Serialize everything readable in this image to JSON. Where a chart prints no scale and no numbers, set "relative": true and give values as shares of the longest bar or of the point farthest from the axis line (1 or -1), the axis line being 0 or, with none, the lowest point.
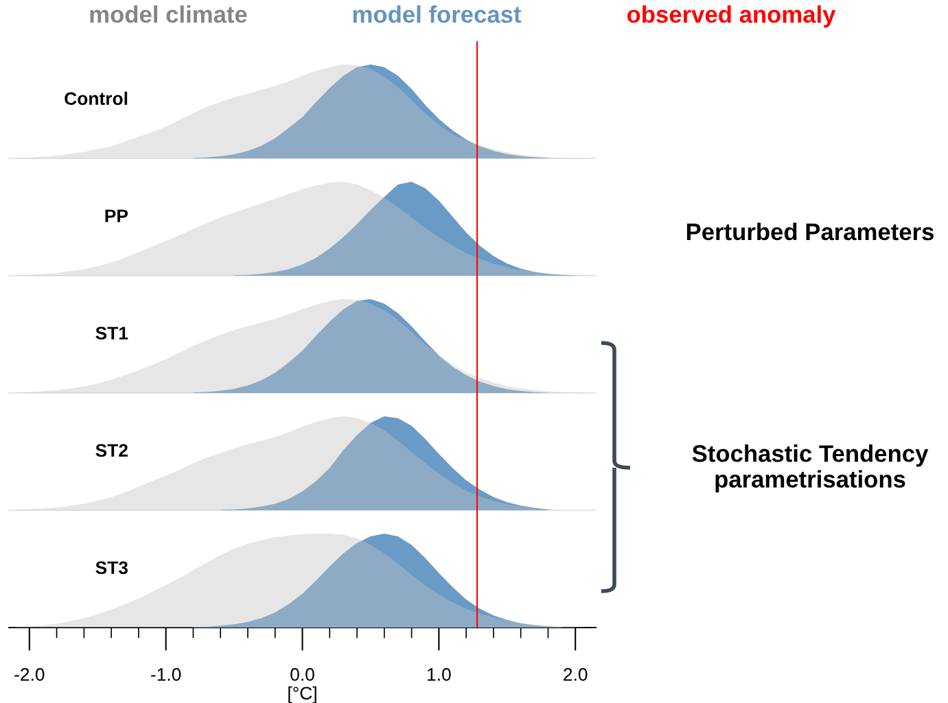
{
  "chart_data": [
    {
      "type": "area",
      "title": "Control",
      "relative": true,
      "xlim": [
        -2.15,
        2.15
      ],
      "tick_labels": false,
      "x": [
        -2.1,
        -2.0,
        -1.9,
        -1.8,
        -1.7,
        -1.6,
        -1.5,
        -1.4,
        -1.3,
        -1.2,
        -1.1,
        -1.0,
        -0.9,
        -0.8,
        -0.7,
        -0.6,
        -0.5,
        -0.4,
        -0.3,
        -0.2,
        -0.1,
        0.0,
        0.1,
        0.2,
        0.3,
        0.4,
        0.5,
        0.6,
        0.7,
        0.8,
        0.9,
        1.0,
        1.1,
        1.2,
        1.3,
        1.4,
        1.5,
        1.6,
        1.7,
        1.8,
        1.9,
        2.0,
        2.1
      ],
      "series": [
        {
          "name": "model climate",
          "color": "#e6e6e6",
          "values": [
            0.005,
            0.01,
            0.02,
            0.03,
            0.05,
            0.07,
            0.1,
            0.13,
            0.18,
            0.23,
            0.28,
            0.34,
            0.41,
            0.48,
            0.55,
            0.6,
            0.65,
            0.69,
            0.73,
            0.77,
            0.82,
            0.88,
            0.93,
            0.97,
            1.0,
            0.99,
            0.95,
            0.87,
            0.76,
            0.62,
            0.48,
            0.36,
            0.26,
            0.19,
            0.14,
            0.1,
            0.065,
            0.04,
            0.025,
            0.015,
            0.008,
            0.004,
            0.002
          ]
        },
        {
          "name": "model forecast",
          "color": "#6a9bc6",
          "values": [
            null,
            null,
            null,
            null,
            null,
            null,
            null,
            null,
            null,
            null,
            null,
            null,
            null,
            0.005,
            0.011,
            0.023,
            0.044,
            0.08,
            0.135,
            0.216,
            0.325,
            0.44,
            0.6,
            0.75,
            0.88,
            0.97,
            1.0,
            0.97,
            0.88,
            0.74,
            0.57,
            0.42,
            0.3,
            0.2,
            0.13,
            0.08,
            0.045,
            0.025,
            0.012,
            0.005,
            null,
            null,
            null
          ]
        }
      ],
      "ref_lines": [
        {
          "axis": "x",
          "value": 1.28,
          "label": "observed anomaly",
          "color": "#ff0000"
        }
      ]
    },
    {
      "type": "area",
      "title": "PP",
      "relative": true,
      "xlim": [
        -2.15,
        2.15
      ],
      "tick_labels": false,
      "x": [
        -2.1,
        -2.0,
        -1.9,
        -1.8,
        -1.7,
        -1.6,
        -1.5,
        -1.4,
        -1.3,
        -1.2,
        -1.1,
        -1.0,
        -0.9,
        -0.8,
        -0.7,
        -0.6,
        -0.5,
        -0.4,
        -0.3,
        -0.2,
        -0.1,
        0.0,
        0.1,
        0.2,
        0.3,
        0.4,
        0.5,
        0.6,
        0.7,
        0.8,
        0.9,
        1.0,
        1.1,
        1.2,
        1.3,
        1.4,
        1.5,
        1.6,
        1.7,
        1.8,
        1.9,
        2.0,
        2.1
      ],
      "series": [
        {
          "color": "#e6e6e6",
          "values": [
            0.005,
            0.01,
            0.02,
            0.03,
            0.05,
            0.07,
            0.1,
            0.14,
            0.19,
            0.25,
            0.31,
            0.37,
            0.43,
            0.5,
            0.56,
            0.62,
            0.67,
            0.72,
            0.77,
            0.82,
            0.87,
            0.92,
            0.96,
            0.99,
            1.0,
            0.97,
            0.91,
            0.83,
            0.73,
            0.62,
            0.51,
            0.41,
            0.32,
            0.24,
            0.18,
            0.13,
            0.09,
            0.06,
            0.04,
            0.025,
            0.015,
            0.008,
            0.004
          ]
        },
        {
          "color": "#6a9bc6",
          "values": [
            null,
            null,
            null,
            null,
            null,
            null,
            null,
            null,
            null,
            null,
            null,
            null,
            null,
            null,
            null,
            null,
            0.005,
            0.01,
            0.02,
            0.04,
            0.07,
            0.12,
            0.19,
            0.29,
            0.41,
            0.55,
            0.7,
            0.84,
            0.97,
            1.0,
            0.93,
            0.8,
            0.63,
            0.46,
            0.32,
            0.21,
            0.13,
            0.075,
            0.04,
            0.02,
            0.01,
            0.004,
            null
          ]
        }
      ],
      "ref_lines": [
        {
          "axis": "x",
          "value": 1.28,
          "color": "#ff0000"
        }
      ],
      "annotations": [
        "Perturbed Parameters"
      ]
    },
    {
      "type": "area",
      "title": "ST1",
      "relative": true,
      "xlim": [
        -2.15,
        2.15
      ],
      "tick_labels": false,
      "x": [
        -2.1,
        -2.0,
        -1.9,
        -1.8,
        -1.7,
        -1.6,
        -1.5,
        -1.4,
        -1.3,
        -1.2,
        -1.1,
        -1.0,
        -0.9,
        -0.8,
        -0.7,
        -0.6,
        -0.5,
        -0.4,
        -0.3,
        -0.2,
        -0.1,
        0.0,
        0.1,
        0.2,
        0.3,
        0.4,
        0.5,
        0.6,
        0.7,
        0.8,
        0.9,
        1.0,
        1.1,
        1.2,
        1.3,
        1.4,
        1.5,
        1.6,
        1.7,
        1.8,
        1.9,
        2.0,
        2.1
      ],
      "series": [
        {
          "color": "#e6e6e6",
          "values": [
            0.005,
            0.01,
            0.02,
            0.03,
            0.05,
            0.07,
            0.1,
            0.14,
            0.19,
            0.24,
            0.3,
            0.36,
            0.43,
            0.5,
            0.56,
            0.62,
            0.67,
            0.71,
            0.75,
            0.79,
            0.84,
            0.89,
            0.94,
            0.98,
            1.0,
            0.99,
            0.95,
            0.88,
            0.78,
            0.65,
            0.52,
            0.4,
            0.3,
            0.22,
            0.16,
            0.11,
            0.075,
            0.05,
            0.03,
            0.018,
            0.01,
            0.005,
            0.002
          ]
        },
        {
          "color": "#6a9bc6",
          "values": [
            null,
            null,
            null,
            null,
            null,
            null,
            null,
            null,
            null,
            null,
            null,
            null,
            null,
            0.005,
            0.011,
            0.023,
            0.044,
            0.08,
            0.135,
            0.216,
            0.325,
            0.45,
            0.61,
            0.76,
            0.89,
            0.98,
            1.0,
            0.95,
            0.85,
            0.71,
            0.55,
            0.4,
            0.28,
            0.19,
            0.12,
            0.075,
            0.04,
            0.022,
            0.01,
            0.004,
            null,
            null,
            null
          ]
        }
      ],
      "ref_lines": [
        {
          "axis": "x",
          "value": 1.28,
          "color": "#ff0000"
        }
      ]
    },
    {
      "type": "area",
      "title": "ST2",
      "relative": true,
      "xlim": [
        -2.15,
        2.15
      ],
      "tick_labels": false,
      "x": [
        -2.1,
        -2.0,
        -1.9,
        -1.8,
        -1.7,
        -1.6,
        -1.5,
        -1.4,
        -1.3,
        -1.2,
        -1.1,
        -1.0,
        -0.9,
        -0.8,
        -0.7,
        -0.6,
        -0.5,
        -0.4,
        -0.3,
        -0.2,
        -0.1,
        0.0,
        0.1,
        0.2,
        0.3,
        0.4,
        0.5,
        0.6,
        0.7,
        0.8,
        0.9,
        1.0,
        1.1,
        1.2,
        1.3,
        1.4,
        1.5,
        1.6,
        1.7,
        1.8,
        1.9
      ],
      "series": [
        {
          "color": "#e6e6e6",
          "values": [
            0.005,
            0.01,
            0.02,
            0.03,
            0.05,
            0.07,
            0.1,
            0.14,
            0.19,
            0.25,
            0.31,
            0.37,
            0.43,
            0.5,
            0.56,
            0.61,
            0.66,
            0.7,
            0.74,
            0.78,
            0.83,
            0.89,
            0.94,
            0.98,
            1.0,
            0.98,
            0.93,
            0.85,
            0.74,
            0.62,
            0.5,
            0.39,
            0.29,
            0.21,
            0.15,
            0.1,
            0.065,
            0.04,
            0.02,
            0.01,
            0
          ]
        },
        {
          "color": "#6a9bc6",
          "values": [
            null,
            null,
            null,
            null,
            null,
            null,
            null,
            null,
            null,
            null,
            null,
            null,
            null,
            null,
            null,
            0.005,
            0.01,
            0.02,
            0.04,
            0.07,
            0.12,
            0.2,
            0.31,
            0.45,
            0.64,
            0.8,
            0.93,
            1.0,
            0.98,
            0.9,
            0.76,
            0.6,
            0.45,
            0.32,
            0.22,
            0.14,
            0.085,
            0.05,
            0.025,
            0.01,
            null
          ]
        }
      ],
      "ref_lines": [
        {
          "axis": "x",
          "value": 1.28,
          "color": "#ff0000"
        }
      ],
      "annotations": [
        "Stochastic Tendency\nparametrisations"
      ]
    },
    {
      "type": "area",
      "title": "ST3",
      "relative": true,
      "xlim": [
        -2.15,
        2.15
      ],
      "tick_labels": "x",
      "xlabel": "[°C]",
      "xticks": [
        {
          "value": -2.0,
          "label": "-2.0"
        },
        {
          "value": -1.8,
          "label": null
        },
        {
          "value": -1.6,
          "label": null
        },
        {
          "value": -1.4,
          "label": null
        },
        {
          "value": -1.2,
          "label": null
        },
        {
          "value": -1.0,
          "label": "-1.0"
        },
        {
          "value": -0.8,
          "label": null
        },
        {
          "value": -0.6,
          "label": null
        },
        {
          "value": -0.4,
          "label": null
        },
        {
          "value": -0.2,
          "label": null
        },
        {
          "value": 0.0,
          "label": "0.0"
        },
        {
          "value": 0.2,
          "label": null
        },
        {
          "value": 0.4,
          "label": null
        },
        {
          "value": 0.6,
          "label": null
        },
        {
          "value": 0.8,
          "label": null
        },
        {
          "value": 1.0,
          "label": "1.0"
        },
        {
          "value": 1.2,
          "label": null
        },
        {
          "value": 1.4,
          "label": null
        },
        {
          "value": 1.6,
          "label": null
        },
        {
          "value": 1.8,
          "label": null
        },
        {
          "value": 2.0,
          "label": "2.0"
        }
      ],
      "x": [
        -2.1,
        -2.0,
        -1.9,
        -1.8,
        -1.7,
        -1.6,
        -1.5,
        -1.4,
        -1.3,
        -1.2,
        -1.1,
        -1.0,
        -0.9,
        -0.8,
        -0.7,
        -0.6,
        -0.5,
        -0.4,
        -0.3,
        -0.2,
        -0.1,
        0.0,
        0.1,
        0.2,
        0.3,
        0.4,
        0.5,
        0.6,
        0.7,
        0.8,
        0.9,
        1.0,
        1.1,
        1.2,
        1.3,
        1.4,
        1.5,
        1.6,
        1.7,
        1.8,
        1.9,
        2.0,
        2.1
      ],
      "series": [
        {
          "color": "#e6e6e6",
          "values": [
            0.005,
            0.015,
            0.025,
            0.04,
            0.07,
            0.1,
            0.14,
            0.19,
            0.25,
            0.31,
            0.38,
            0.45,
            0.53,
            0.61,
            0.69,
            0.77,
            0.84,
            0.89,
            0.93,
            0.96,
            0.98,
            0.99,
            1.0,
            1.0,
            0.99,
            0.95,
            0.88,
            0.79,
            0.68,
            0.56,
            0.45,
            0.35,
            0.27,
            0.2,
            0.15,
            0.11,
            0.075,
            0.05,
            0.03,
            0.02,
            0.01,
            0.005,
            0.002
          ]
        },
        {
          "color": "#6a9bc6",
          "values": [
            null,
            null,
            null,
            null,
            null,
            null,
            null,
            null,
            null,
            null,
            null,
            null,
            null,
            0.005,
            0.01,
            0.02,
            0.035,
            0.06,
            0.1,
            0.16,
            0.25,
            0.36,
            0.5,
            0.65,
            0.79,
            0.9,
            0.97,
            1.0,
            0.97,
            0.88,
            0.74,
            0.58,
            0.43,
            0.3,
            0.2,
            0.13,
            0.08,
            0.045,
            0.025,
            0.012,
            0.005,
            null,
            null
          ]
        }
      ],
      "ref_lines": [
        {
          "axis": "x",
          "value": 1.28,
          "color": "#ff0000"
        }
      ]
    }
  ]
}
